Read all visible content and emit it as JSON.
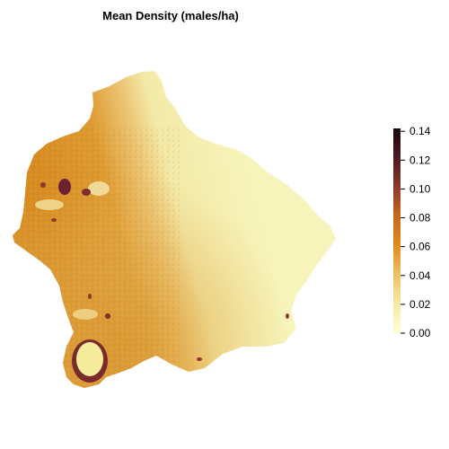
{
  "title": "Mean Density (males/ha)",
  "legend": {
    "min": 0.0,
    "max": 0.142,
    "ticks": [
      "0.00",
      "0.02",
      "0.04",
      "0.06",
      "0.08",
      "0.10",
      "0.12",
      "0.14"
    ],
    "tick_values": [
      0.0,
      0.02,
      0.04,
      0.06,
      0.08,
      0.1,
      0.12,
      0.14
    ],
    "colors": [
      "#ffffd4",
      "#f7e9a6",
      "#eec26a",
      "#e08e1f",
      "#c46a1c",
      "#8d3a2b",
      "#4a1a22",
      "#1a0b0e"
    ]
  },
  "map": {
    "description_colors": {
      "low": "#f5f3b6",
      "mid": "#e3a43a",
      "high": "#6b2130"
    }
  }
}
